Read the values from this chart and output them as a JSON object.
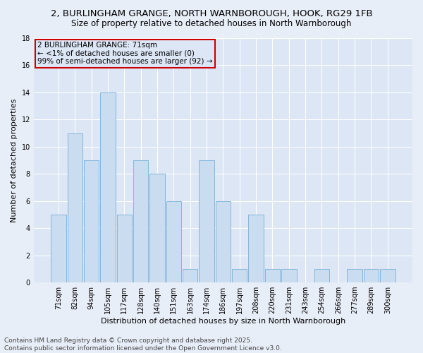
{
  "title": "2, BURLINGHAM GRANGE, NORTH WARNBOROUGH, HOOK, RG29 1FB",
  "subtitle": "Size of property relative to detached houses in North Warnborough",
  "xlabel": "Distribution of detached houses by size in North Warnborough",
  "ylabel": "Number of detached properties",
  "categories": [
    "71sqm",
    "82sqm",
    "94sqm",
    "105sqm",
    "117sqm",
    "128sqm",
    "140sqm",
    "151sqm",
    "163sqm",
    "174sqm",
    "186sqm",
    "197sqm",
    "208sqm",
    "220sqm",
    "231sqm",
    "243sqm",
    "254sqm",
    "266sqm",
    "277sqm",
    "289sqm",
    "300sqm"
  ],
  "values": [
    5,
    11,
    9,
    14,
    5,
    9,
    8,
    6,
    1,
    9,
    6,
    1,
    5,
    1,
    1,
    0,
    1,
    0,
    1,
    1,
    1
  ],
  "bar_color": "#c9dcf0",
  "bar_edge_color": "#7aaed6",
  "annotation_text": "2 BURLINGHAM GRANGE: 71sqm\n← <1% of detached houses are smaller (0)\n99% of semi-detached houses are larger (92) →",
  "annotation_box_edge_color": "#cc0000",
  "ylim": [
    0,
    18
  ],
  "yticks": [
    0,
    2,
    4,
    6,
    8,
    10,
    12,
    14,
    16,
    18
  ],
  "background_color": "#e8eef8",
  "plot_bg_color": "#dce6f5",
  "grid_color": "#ffffff",
  "footer_line1": "Contains HM Land Registry data © Crown copyright and database right 2025.",
  "footer_line2": "Contains public sector information licensed under the Open Government Licence v3.0.",
  "title_fontsize": 9.5,
  "subtitle_fontsize": 8.5,
  "xlabel_fontsize": 8,
  "ylabel_fontsize": 8,
  "tick_fontsize": 7,
  "annotation_fontsize": 7.5,
  "footer_fontsize": 6.5
}
